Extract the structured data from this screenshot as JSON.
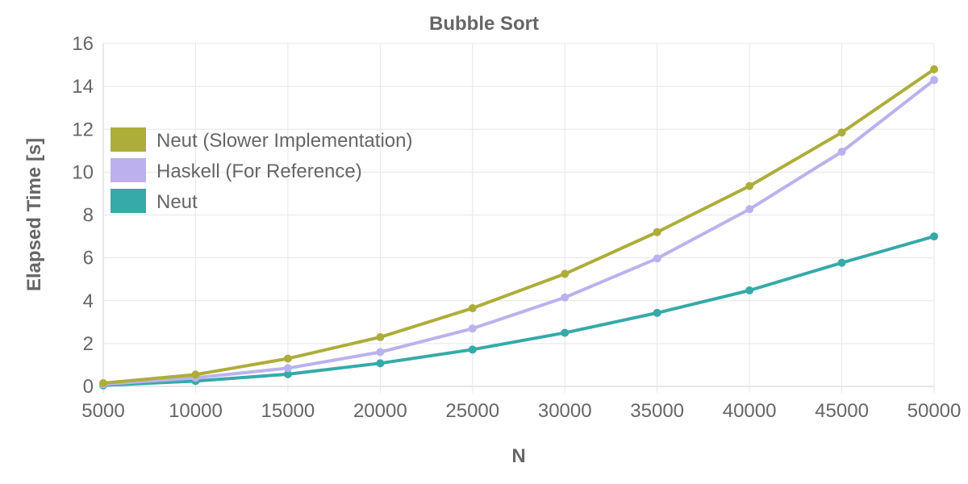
{
  "chart_data": {
    "type": "line",
    "title": "Bubble Sort",
    "xlabel": "N",
    "ylabel": "Elapsed Time [s]",
    "x": [
      5000,
      10000,
      15000,
      20000,
      25000,
      30000,
      35000,
      40000,
      45000,
      50000
    ],
    "ylim": [
      0,
      16
    ],
    "yticks": [
      0,
      2,
      4,
      6,
      8,
      10,
      12,
      14,
      16
    ],
    "grid": true,
    "legend_position": "top-left",
    "series": [
      {
        "name": "Neut (Slower Implementation)",
        "color": "#adad3a",
        "values": [
          0.15,
          0.55,
          1.3,
          2.3,
          3.65,
          5.25,
          7.2,
          9.35,
          11.85,
          14.8
        ]
      },
      {
        "name": "Haskell (For Reference)",
        "color": "#bcb1ee",
        "values": [
          0.1,
          0.4,
          0.85,
          1.6,
          2.7,
          4.15,
          5.97,
          8.27,
          10.95,
          14.3
        ]
      },
      {
        "name": "Neut",
        "color": "#35aaa8",
        "values": [
          0.05,
          0.25,
          0.57,
          1.08,
          1.72,
          2.5,
          3.43,
          4.48,
          5.77,
          7.0
        ]
      }
    ]
  }
}
